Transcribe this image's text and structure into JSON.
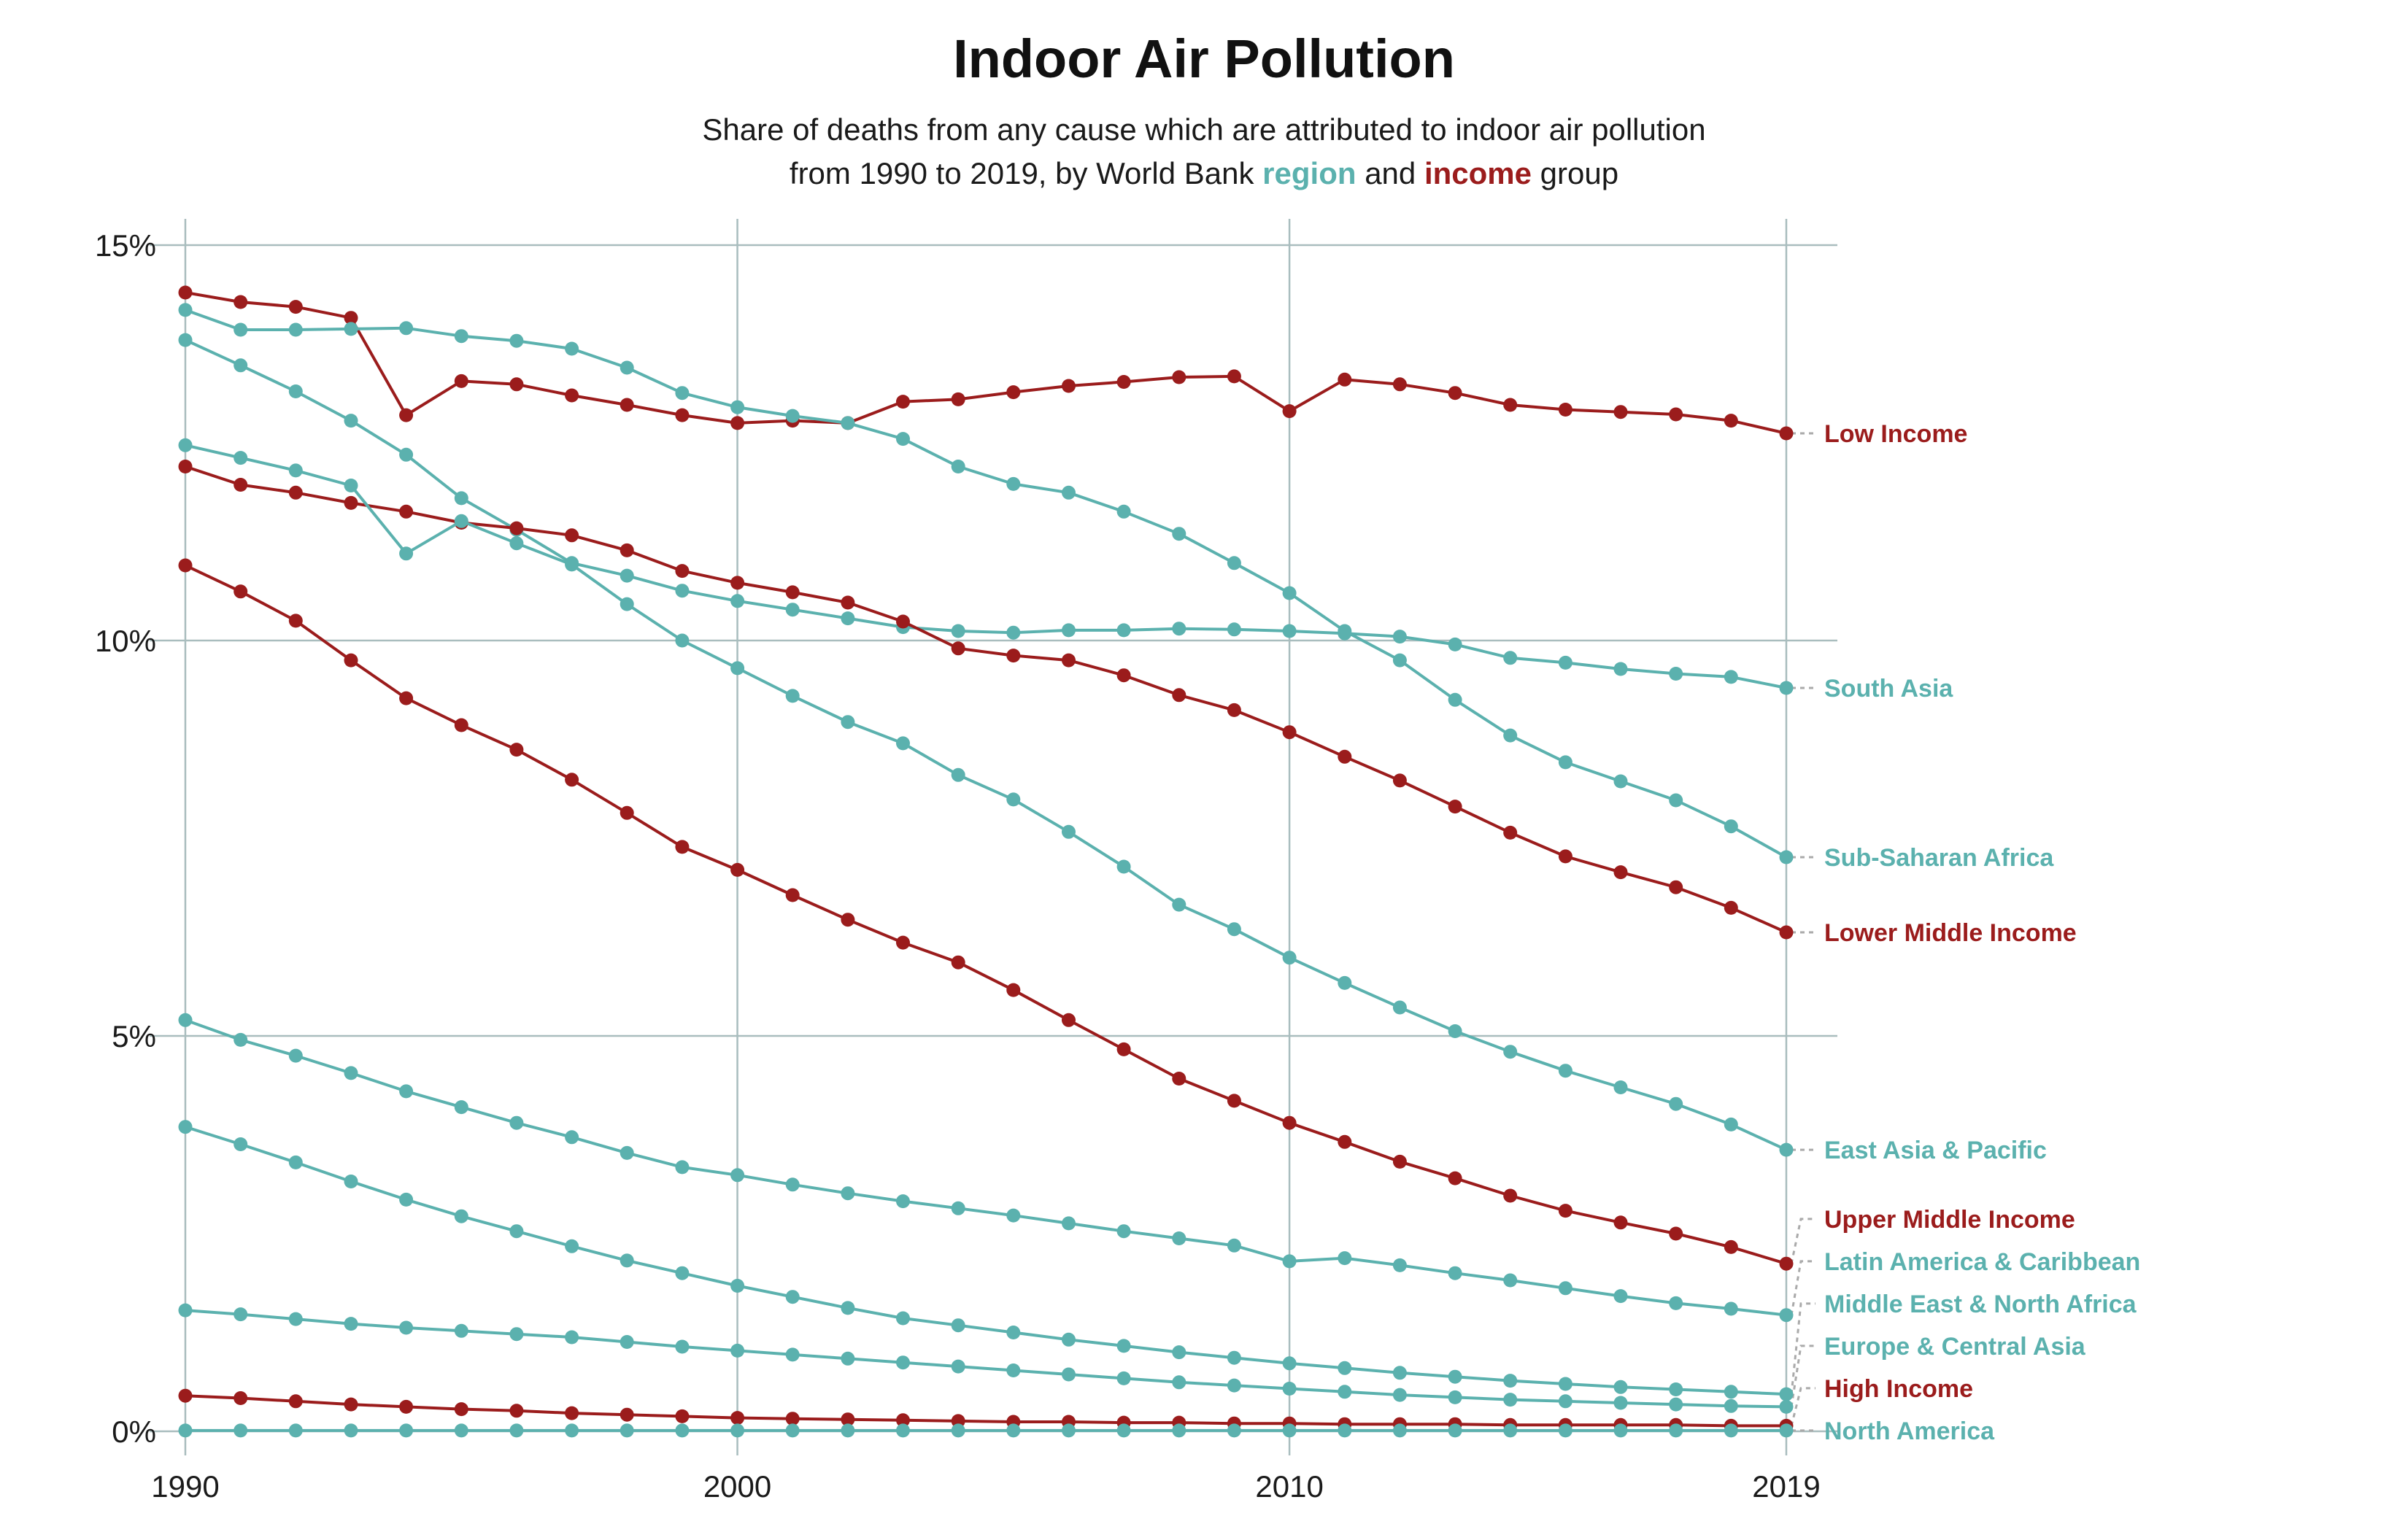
{
  "colors": {
    "region": "#5BB1AE",
    "income": "#9B1C1C",
    "grid": "#A9BDBE",
    "connector": "#AAAAAA"
  },
  "chart_data": {
    "type": "line",
    "title": "Indoor Air Pollution",
    "subtitle": {
      "line1": "Share of deaths from any cause which are attributed to indoor air pollution",
      "line2_prefix": "from 1990 to 2019, by World Bank",
      "region_word": "region",
      "and_word": "and",
      "income_word": "income",
      "line2_suffix": "group"
    },
    "xlim": [
      1990,
      2019
    ],
    "ylim": [
      0,
      15
    ],
    "x_ticks": [
      {
        "value": 1990,
        "label": "1990"
      },
      {
        "value": 2000,
        "label": "2000"
      },
      {
        "value": 2010,
        "label": "2010"
      },
      {
        "value": 2019,
        "label": "2019"
      }
    ],
    "y_ticks": [
      {
        "value": 0,
        "label": "0%"
      },
      {
        "value": 5,
        "label": "5%"
      },
      {
        "value": 10,
        "label": "10%"
      },
      {
        "value": 15,
        "label": "15%"
      }
    ],
    "grid": true,
    "legend": "direct labels at right",
    "x": [
      1990,
      1991,
      1992,
      1993,
      1994,
      1995,
      1996,
      1997,
      1998,
      1999,
      2000,
      2001,
      2002,
      2003,
      2004,
      2005,
      2006,
      2007,
      2008,
      2009,
      2010,
      2011,
      2012,
      2013,
      2014,
      2015,
      2016,
      2017,
      2018,
      2019
    ],
    "series": [
      {
        "name": "Low Income",
        "group": "income",
        "values": [
          14.4,
          14.28,
          14.22,
          14.08,
          12.85,
          13.28,
          13.24,
          13.1,
          12.98,
          12.85,
          12.75,
          12.78,
          12.75,
          13.02,
          13.05,
          13.14,
          13.22,
          13.27,
          13.33,
          13.34,
          12.9,
          13.3,
          13.24,
          13.13,
          12.98,
          12.92,
          12.89,
          12.86,
          12.78,
          12.62
        ]
      },
      {
        "name": "Sub-Saharan Africa",
        "group": "region",
        "values": [
          14.18,
          13.93,
          13.93,
          13.94,
          13.95,
          13.85,
          13.79,
          13.69,
          13.45,
          13.13,
          12.95,
          12.84,
          12.75,
          12.55,
          12.2,
          11.98,
          11.87,
          11.63,
          11.35,
          10.98,
          10.6,
          10.12,
          9.75,
          9.25,
          8.8,
          8.46,
          8.22,
          7.98,
          7.65,
          7.26
        ]
      },
      {
        "name": "South Asia",
        "group": "region",
        "values": [
          13.8,
          13.48,
          13.15,
          12.78,
          12.35,
          11.8,
          11.4,
          10.98,
          10.82,
          10.63,
          10.5,
          10.39,
          10.28,
          10.17,
          10.12,
          10.1,
          10.13,
          10.13,
          10.15,
          10.14,
          10.12,
          10.09,
          10.05,
          9.95,
          9.78,
          9.72,
          9.64,
          9.58,
          9.54,
          9.4
        ]
      },
      {
        "name": "Lower Middle Income",
        "group": "income",
        "values": [
          12.2,
          11.97,
          11.87,
          11.74,
          11.63,
          11.49,
          11.42,
          11.33,
          11.14,
          10.88,
          10.73,
          10.61,
          10.48,
          10.24,
          9.9,
          9.81,
          9.75,
          9.56,
          9.31,
          9.12,
          8.84,
          8.53,
          8.23,
          7.9,
          7.57,
          7.27,
          7.07,
          6.88,
          6.62,
          6.31
        ]
      },
      {
        "name": "East Asia & Pacific",
        "group": "region",
        "values": [
          12.47,
          12.31,
          12.15,
          11.96,
          11.1,
          11.51,
          11.23,
          10.96,
          10.46,
          10.0,
          9.65,
          9.3,
          8.97,
          8.7,
          8.3,
          7.99,
          7.58,
          7.14,
          6.66,
          6.35,
          5.99,
          5.67,
          5.36,
          5.06,
          4.8,
          4.56,
          4.35,
          4.14,
          3.88,
          3.56
        ]
      },
      {
        "name": "Upper Middle Income",
        "group": "income",
        "values": [
          10.95,
          10.62,
          10.25,
          9.75,
          9.27,
          8.93,
          8.62,
          8.24,
          7.82,
          7.39,
          7.1,
          6.78,
          6.47,
          6.18,
          5.93,
          5.58,
          5.2,
          4.83,
          4.46,
          4.18,
          3.9,
          3.66,
          3.41,
          3.2,
          2.98,
          2.79,
          2.64,
          2.5,
          2.33,
          2.12
        ]
      },
      {
        "name": "Latin America & Caribbean",
        "group": "region",
        "values": [
          5.2,
          4.95,
          4.75,
          4.53,
          4.3,
          4.1,
          3.9,
          3.72,
          3.52,
          3.34,
          3.24,
          3.12,
          3.01,
          2.91,
          2.82,
          2.73,
          2.63,
          2.53,
          2.44,
          2.35,
          2.15,
          2.19,
          2.1,
          2.0,
          1.91,
          1.81,
          1.71,
          1.62,
          1.55,
          1.47
        ]
      },
      {
        "name": "Middle East & North Africa",
        "group": "region",
        "values": [
          3.85,
          3.63,
          3.4,
          3.16,
          2.93,
          2.72,
          2.53,
          2.34,
          2.16,
          2.0,
          1.84,
          1.7,
          1.56,
          1.43,
          1.34,
          1.25,
          1.16,
          1.08,
          1.0,
          0.93,
          0.86,
          0.8,
          0.74,
          0.69,
          0.64,
          0.6,
          0.56,
          0.53,
          0.5,
          0.47
        ]
      },
      {
        "name": "Europe & Central Asia",
        "group": "region",
        "values": [
          1.53,
          1.48,
          1.42,
          1.36,
          1.31,
          1.27,
          1.23,
          1.19,
          1.13,
          1.07,
          1.02,
          0.97,
          0.92,
          0.87,
          0.82,
          0.77,
          0.72,
          0.67,
          0.62,
          0.58,
          0.54,
          0.5,
          0.46,
          0.43,
          0.4,
          0.38,
          0.36,
          0.34,
          0.32,
          0.31
        ]
      },
      {
        "name": "High Income",
        "group": "income",
        "values": [
          0.45,
          0.42,
          0.38,
          0.34,
          0.31,
          0.28,
          0.26,
          0.23,
          0.21,
          0.19,
          0.17,
          0.16,
          0.15,
          0.14,
          0.13,
          0.12,
          0.12,
          0.11,
          0.11,
          0.1,
          0.1,
          0.09,
          0.09,
          0.09,
          0.08,
          0.08,
          0.08,
          0.08,
          0.07,
          0.07
        ]
      },
      {
        "name": "North America",
        "group": "region",
        "values": [
          0.01,
          0.01,
          0.01,
          0.01,
          0.01,
          0.01,
          0.01,
          0.01,
          0.01,
          0.01,
          0.01,
          0.01,
          0.01,
          0.01,
          0.01,
          0.01,
          0.01,
          0.01,
          0.01,
          0.01,
          0.01,
          0.01,
          0.01,
          0.01,
          0.01,
          0.01,
          0.01,
          0.01,
          0.01,
          0.01
        ]
      }
    ]
  }
}
